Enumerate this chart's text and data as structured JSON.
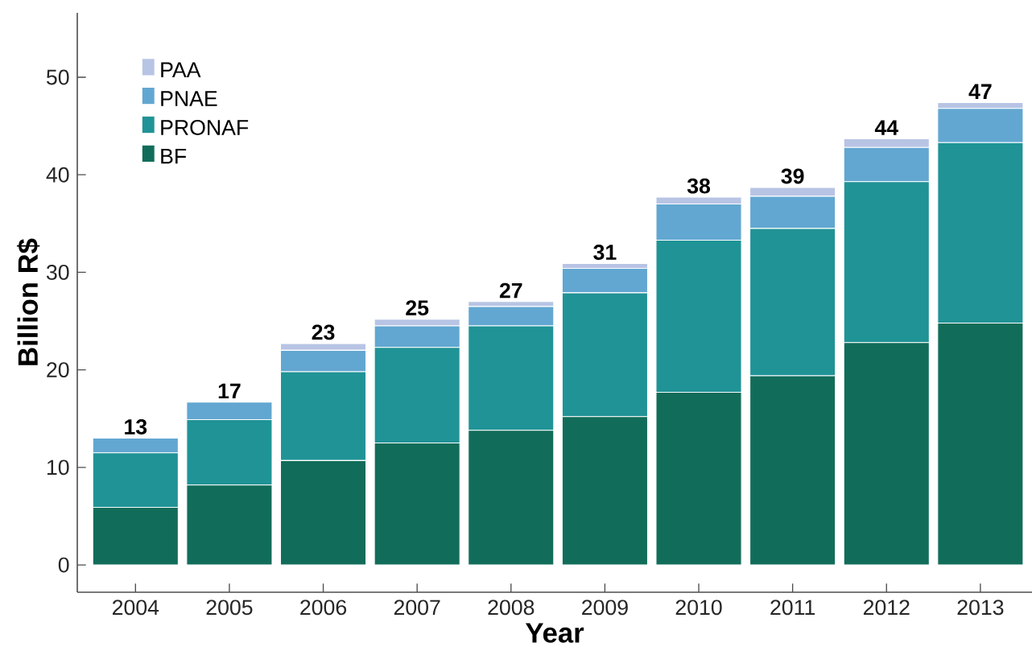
{
  "chart_data": {
    "type": "bar",
    "stacked": true,
    "xlabel": "Year",
    "ylabel": "Billion R$",
    "categories": [
      "2004",
      "2005",
      "2006",
      "2007",
      "2008",
      "2009",
      "2010",
      "2011",
      "2012",
      "2013"
    ],
    "series": [
      {
        "name": "BF",
        "color": "#116d5a",
        "values": [
          5.9,
          8.2,
          10.7,
          12.5,
          13.8,
          15.2,
          17.7,
          19.4,
          22.8,
          24.8
        ]
      },
      {
        "name": "PRONAF",
        "color": "#209396",
        "values": [
          5.6,
          6.7,
          9.1,
          9.8,
          10.7,
          12.7,
          15.6,
          15.1,
          16.5,
          18.5
        ]
      },
      {
        "name": "PNAE",
        "color": "#62a7d1",
        "values": [
          1.5,
          1.8,
          2.2,
          2.2,
          2.0,
          2.5,
          3.7,
          3.3,
          3.5,
          3.5
        ]
      },
      {
        "name": "PAA",
        "color": "#b8c4e4",
        "values": [
          0,
          0,
          0.7,
          0.7,
          0.5,
          0.5,
          0.7,
          0.9,
          0.9,
          0.6
        ]
      }
    ],
    "totals": [
      "13",
      "17",
      "23",
      "25",
      "27",
      "31",
      "38",
      "39",
      "44",
      "47"
    ],
    "ylim": [
      -2.8,
      56.6
    ],
    "yticks": [
      0,
      10,
      20,
      30,
      40,
      50
    ],
    "grid": false,
    "legend": "top left"
  }
}
